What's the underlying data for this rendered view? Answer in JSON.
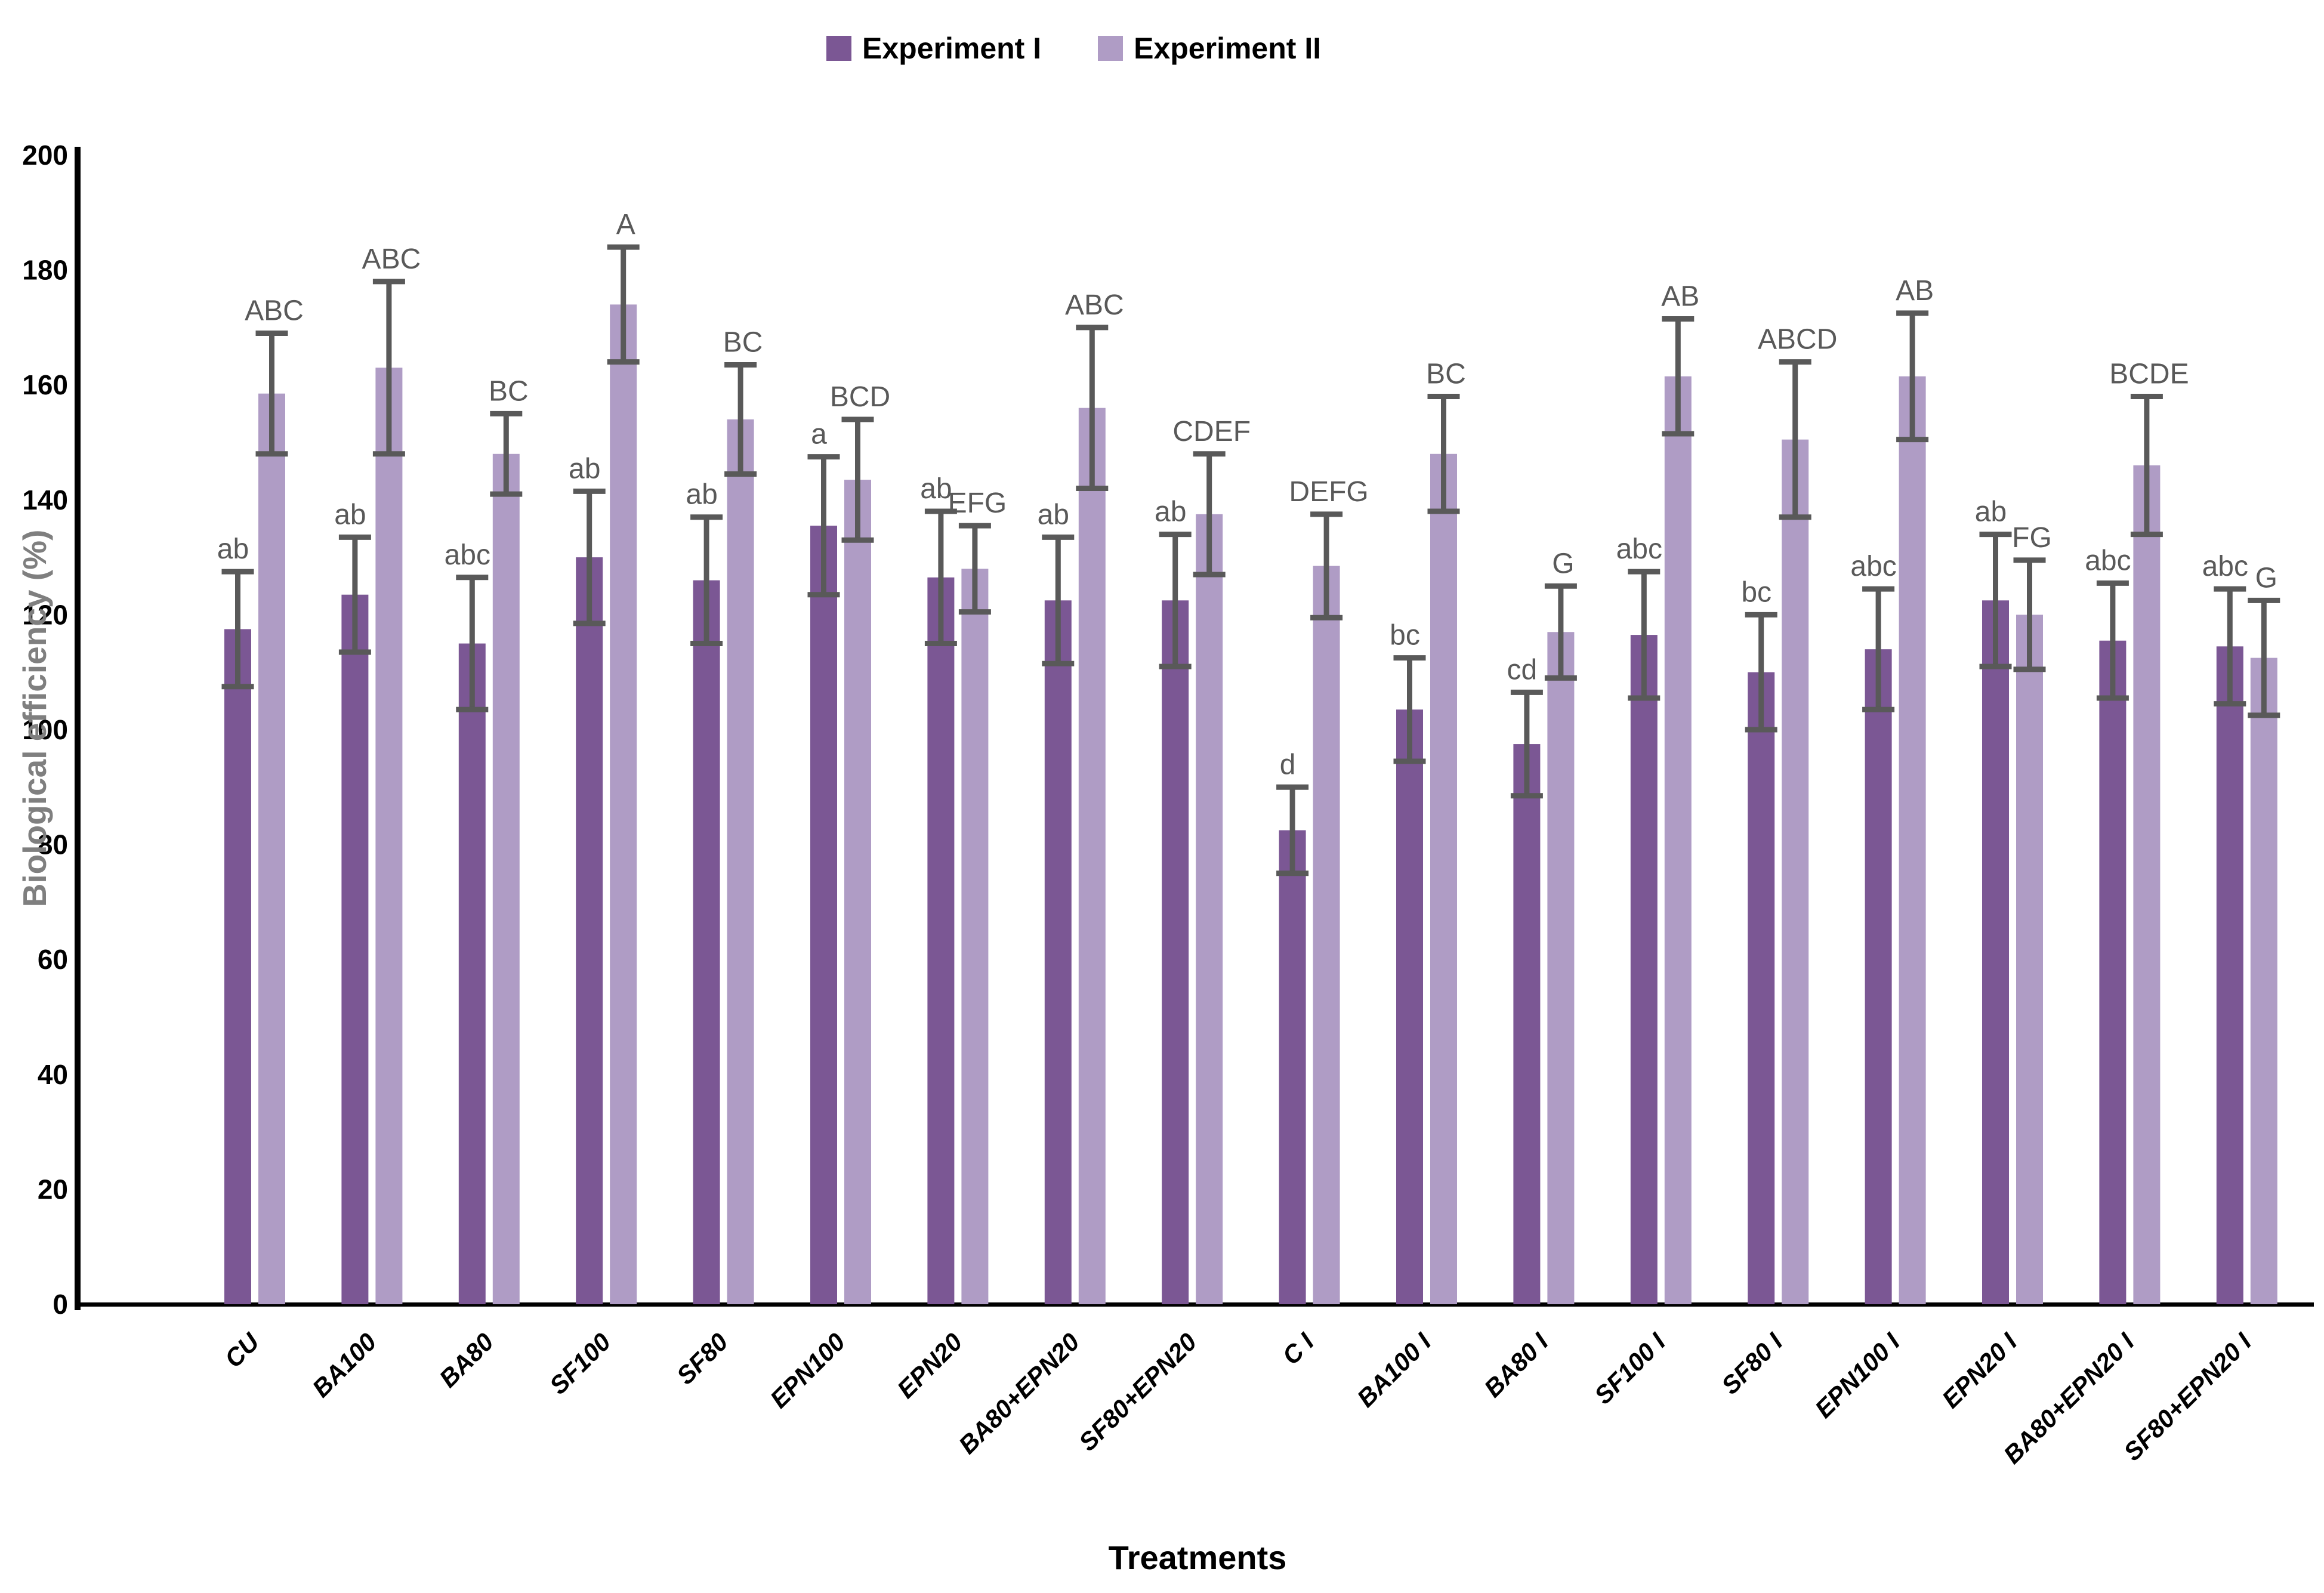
{
  "chart_data": {
    "type": "bar",
    "title": "",
    "xlabel": "Treatments",
    "ylabel": "Biological efficiency (%)",
    "ylim": [
      0,
      200
    ],
    "ytick_step": 20,
    "grid": false,
    "legend_position": "top-center",
    "axis_color": "#000000",
    "error_bar_color": "#595959",
    "letter_color": "#595959",
    "ylabel_color": "#7F7F7F",
    "categories": [
      "CU",
      "BA100",
      "BA80",
      "SF100",
      "SF80",
      "EPN100",
      "EPN20",
      "BA80+EPN20",
      "SF80+EPN20",
      "C I",
      "BA100 I",
      "BA80 I",
      "SF100 I",
      "SF80 I",
      "EPN100 I",
      "EPN20 I",
      "BA80+EPN20 I",
      "SF80+EPN20 I"
    ],
    "series": [
      {
        "name": "Experiment I",
        "color": "#7B5794",
        "values": [
          117.5,
          123.5,
          115,
          130,
          126,
          135.5,
          126.5,
          122.5,
          122.5,
          82.5,
          103.5,
          97.5,
          116.5,
          110,
          114,
          122.5,
          115.5,
          114.5
        ],
        "errors": [
          10,
          10,
          11.5,
          11.5,
          11,
          12,
          11.5,
          11,
          11.5,
          7.5,
          9,
          9,
          11,
          10,
          10.5,
          11.5,
          10,
          10
        ],
        "letters": [
          "ab",
          "ab",
          "abc",
          "ab",
          "ab",
          "a",
          "ab",
          "ab",
          "ab",
          "d",
          "bc",
          "cd",
          "abc",
          "bc",
          "abc",
          "ab",
          "abc",
          "abc"
        ]
      },
      {
        "name": "Experiment II",
        "color": "#AF9CC5",
        "values": [
          158.5,
          163,
          148,
          174,
          154,
          143.5,
          128,
          156,
          137.5,
          128.5,
          148,
          117,
          161.5,
          150.5,
          161.5,
          120,
          146,
          112.5
        ],
        "errors": [
          10.5,
          15,
          7,
          10,
          9.5,
          10.5,
          7.5,
          14,
          10.5,
          9,
          10,
          8,
          10,
          13.5,
          11,
          9.5,
          12,
          10
        ],
        "letters": [
          "ABC",
          "ABC",
          "BC",
          "A",
          "BC",
          "BCD",
          "EFG",
          "ABC",
          "CDEF",
          "DEFG",
          "BC",
          "G",
          "AB",
          "ABCD",
          "AB",
          "FG",
          "BCDE",
          "G"
        ]
      }
    ]
  }
}
